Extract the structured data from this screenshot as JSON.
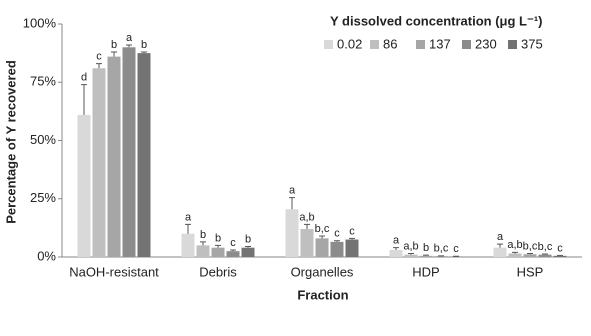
{
  "chart_data": {
    "type": "bar",
    "legend_title": "Y dissolved concentration (μg L⁻¹)",
    "y_label": "Percentage of Y recovered",
    "x_label": "Fraction",
    "categories": [
      "NaOH-resistant",
      "Debris",
      "Organelles",
      "HDP",
      "HSP"
    ],
    "series": [
      {
        "name": "0.02",
        "color": "#d9d9d9",
        "values": [
          61,
          10,
          20.5,
          3,
          4
        ],
        "errors": [
          13,
          4,
          5,
          1,
          1.5
        ],
        "letters": [
          "d",
          "a",
          "a",
          "a",
          "a"
        ]
      },
      {
        "name": "86",
        "color": "#bfbfbf",
        "values": [
          81,
          5,
          12,
          1,
          1.5
        ],
        "errors": [
          2,
          1.5,
          2,
          0.5,
          0.5
        ],
        "letters": [
          "c",
          "b",
          "a,b",
          "a,b",
          "a,b"
        ]
      },
      {
        "name": "137",
        "color": "#a6a6a6",
        "values": [
          86,
          4,
          8,
          0.5,
          1.2
        ],
        "errors": [
          2,
          1,
          1,
          0.3,
          0.3
        ],
        "letters": [
          "b",
          "b",
          "b,c",
          "b",
          "b,c"
        ]
      },
      {
        "name": "230",
        "color": "#8c8c8c",
        "values": [
          90,
          2.5,
          6.5,
          0.3,
          1
        ],
        "errors": [
          1,
          0.5,
          0.5,
          0.2,
          0.3
        ],
        "letters": [
          "a",
          "c",
          "c",
          "b,c",
          "b,c"
        ]
      },
      {
        "name": "375",
        "color": "#737373",
        "values": [
          87.5,
          4,
          7.5,
          0.2,
          0.5
        ],
        "errors": [
          0.5,
          0.5,
          0.5,
          0.1,
          0.2
        ],
        "letters": [
          "b",
          "b",
          "c",
          "c",
          "c"
        ]
      }
    ],
    "ylim": [
      0,
      100
    ],
    "yticks": [
      {
        "value": 0,
        "label": "0%"
      },
      {
        "value": 25,
        "label": "25%"
      },
      {
        "value": 50,
        "label": "50%"
      },
      {
        "value": 75,
        "label": "75%"
      },
      {
        "value": 100,
        "label": "100%"
      }
    ]
  }
}
